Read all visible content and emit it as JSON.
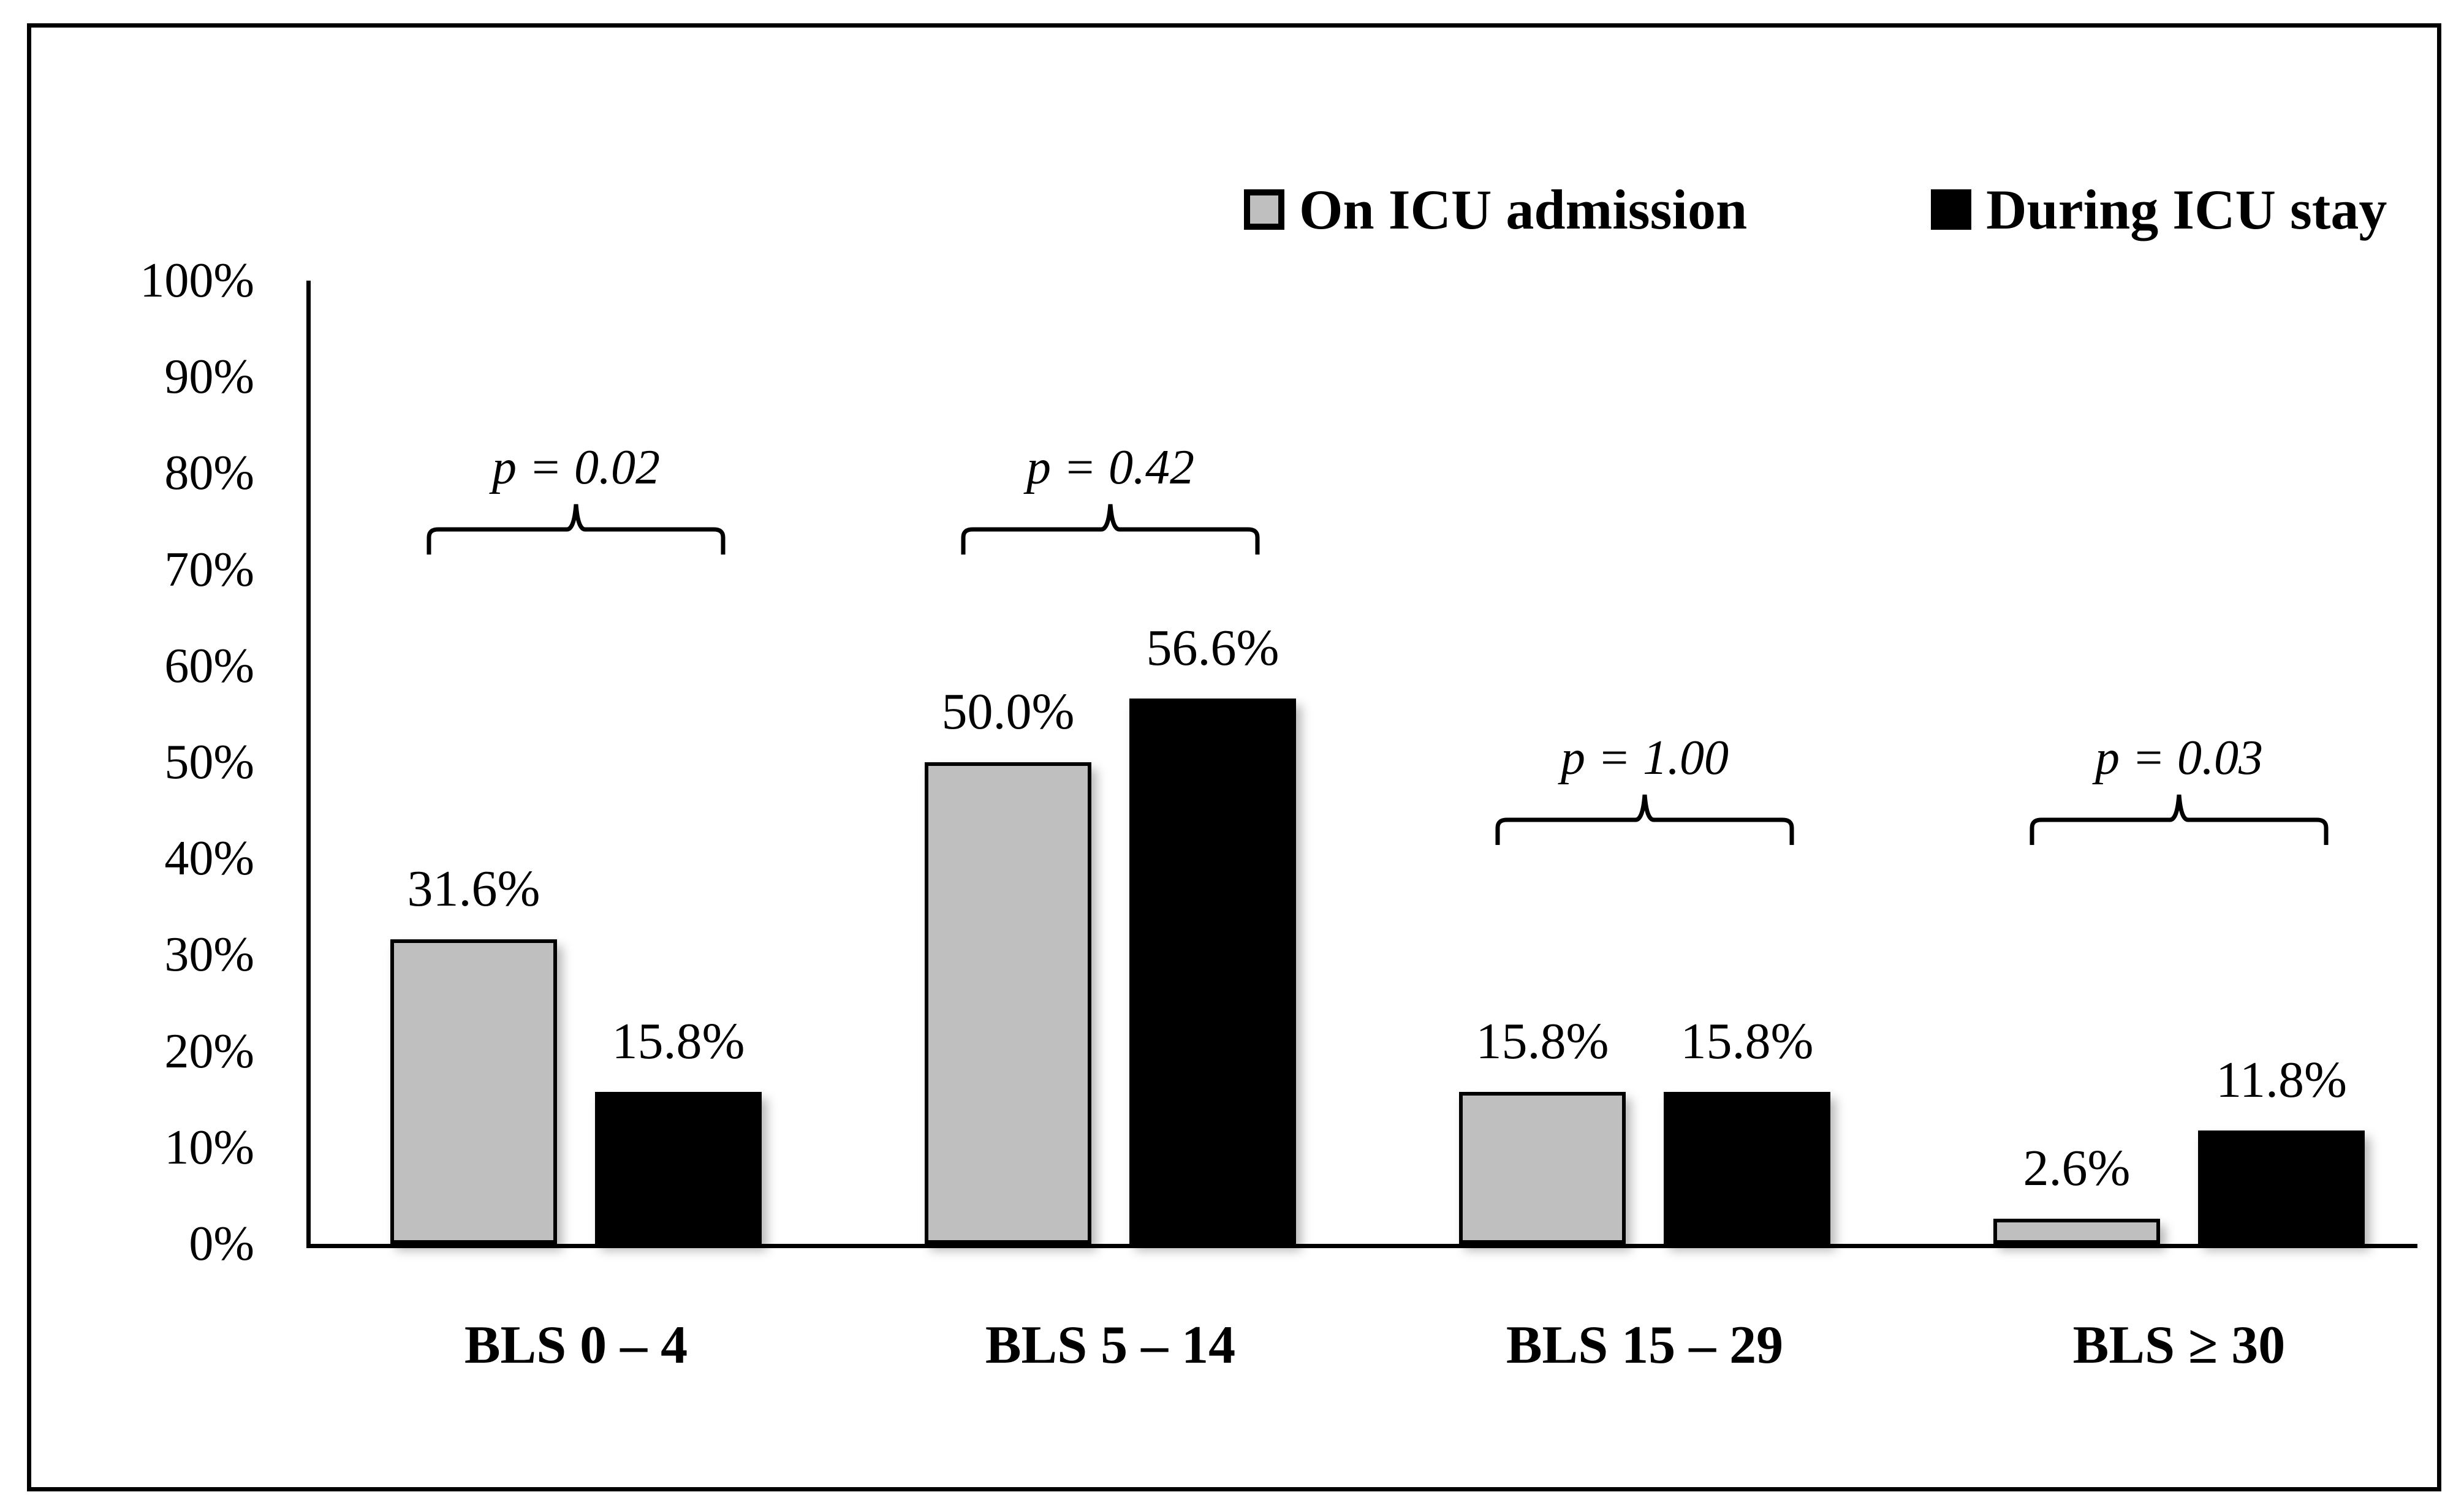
{
  "legend": {
    "items": [
      {
        "label": "On ICU admission",
        "marker": "gray-square-icon",
        "color": "#bfbfbf"
      },
      {
        "label": "During ICU stay",
        "marker": "black-square-icon",
        "color": "#000000"
      }
    ]
  },
  "chart_data": {
    "type": "bar",
    "categories": [
      "BLS 0 – 4",
      "BLS 5 – 14",
      "BLS 15 – 29",
      "BLS ≥ 30"
    ],
    "series": [
      {
        "name": "On ICU admission",
        "color": "#bfbfbf",
        "values": [
          31.6,
          50.0,
          15.8,
          2.6
        ]
      },
      {
        "name": "During ICU stay",
        "color": "#000000",
        "values": [
          15.8,
          56.6,
          15.8,
          11.8
        ]
      }
    ],
    "value_labels": [
      [
        "31.6%",
        "15.8%"
      ],
      [
        "50.0%",
        "56.6%"
      ],
      [
        "15.8%",
        "15.8%"
      ],
      [
        "2.6%",
        "11.8%"
      ]
    ],
    "p_values": [
      "p = 0.02",
      "p = 0.42",
      "p = 1.00",
      "p = 0.03"
    ],
    "bracket_levels_pct": [
      74.2,
      74.2,
      44.0,
      44.0
    ],
    "yticks": [
      "100%",
      "90%",
      "80%",
      "70%",
      "60%",
      "50%",
      "40%",
      "30%",
      "20%",
      "10%",
      "0%"
    ],
    "ylabel": "",
    "xlabel": "",
    "title": "",
    "ylim": [
      0,
      100
    ],
    "grid": false,
    "legend_position": "top-right",
    "bar_border_color": "#000000",
    "axis_color": "#000000"
  }
}
